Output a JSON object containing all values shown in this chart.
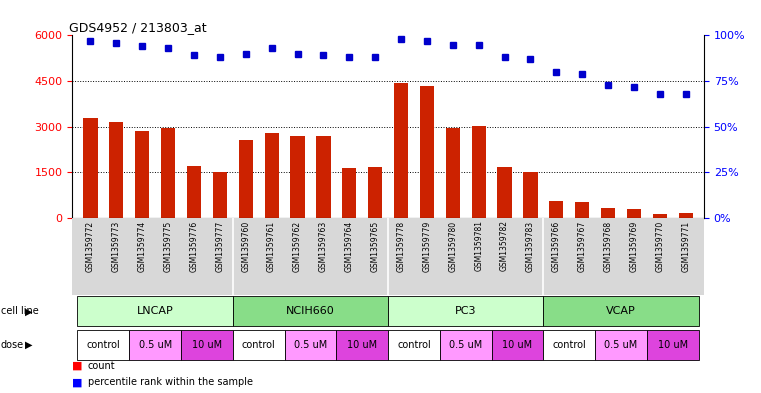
{
  "title": "GDS4952 / 213803_at",
  "samples": [
    "GSM1359772",
    "GSM1359773",
    "GSM1359774",
    "GSM1359775",
    "GSM1359776",
    "GSM1359777",
    "GSM1359760",
    "GSM1359761",
    "GSM1359762",
    "GSM1359763",
    "GSM1359764",
    "GSM1359765",
    "GSM1359778",
    "GSM1359779",
    "GSM1359780",
    "GSM1359781",
    "GSM1359782",
    "GSM1359783",
    "GSM1359766",
    "GSM1359767",
    "GSM1359768",
    "GSM1359769",
    "GSM1359770",
    "GSM1359771"
  ],
  "counts": [
    3300,
    3150,
    2850,
    2950,
    1700,
    1530,
    2550,
    2780,
    2700,
    2700,
    1650,
    1680,
    4430,
    4350,
    2950,
    3020,
    1680,
    1520,
    550,
    530,
    340,
    290,
    150,
    160
  ],
  "percentiles": [
    97,
    96,
    94,
    93,
    89,
    88,
    90,
    93,
    90,
    89,
    88,
    88,
    98,
    97,
    95,
    95,
    88,
    87,
    80,
    79,
    73,
    72,
    68,
    68
  ],
  "cell_lines": [
    {
      "name": "LNCAP",
      "start": 0,
      "end": 6,
      "color_light": "#ccffcc",
      "color_dark": "#88ee88"
    },
    {
      "name": "NCIH660",
      "start": 6,
      "end": 12,
      "color_light": "#88ee88",
      "color_dark": "#44cc44"
    },
    {
      "name": "PC3",
      "start": 12,
      "end": 18,
      "color_light": "#ccffcc",
      "color_dark": "#88ee88"
    },
    {
      "name": "VCAP",
      "start": 18,
      "end": 24,
      "color_light": "#88ee88",
      "color_dark": "#44cc44"
    }
  ],
  "doses": [
    {
      "name": "control",
      "start": 0,
      "end": 2,
      "color": "#ffffff"
    },
    {
      "name": "0.5 uM",
      "start": 2,
      "end": 4,
      "color": "#ff99ff"
    },
    {
      "name": "10 uM",
      "start": 4,
      "end": 6,
      "color": "#dd44dd"
    },
    {
      "name": "control",
      "start": 6,
      "end": 8,
      "color": "#ffffff"
    },
    {
      "name": "0.5 uM",
      "start": 8,
      "end": 10,
      "color": "#ff99ff"
    },
    {
      "name": "10 uM",
      "start": 10,
      "end": 12,
      "color": "#dd44dd"
    },
    {
      "name": "control",
      "start": 12,
      "end": 14,
      "color": "#ffffff"
    },
    {
      "name": "0.5 uM",
      "start": 14,
      "end": 16,
      "color": "#ff99ff"
    },
    {
      "name": "10 uM",
      "start": 16,
      "end": 18,
      "color": "#dd44dd"
    },
    {
      "name": "control",
      "start": 18,
      "end": 20,
      "color": "#ffffff"
    },
    {
      "name": "0.5 uM",
      "start": 20,
      "end": 22,
      "color": "#ff99ff"
    },
    {
      "name": "10 uM",
      "start": 22,
      "end": 24,
      "color": "#dd44dd"
    }
  ],
  "bar_color": "#cc2200",
  "dot_color": "#0000cc",
  "ylim_left": [
    0,
    6000
  ],
  "ylim_right": [
    0,
    100
  ],
  "yticks_left": [
    0,
    1500,
    3000,
    4500,
    6000
  ],
  "yticks_right": [
    0,
    25,
    50,
    75,
    100
  ],
  "ytick_labels_right": [
    "0%",
    "25%",
    "50%",
    "75%",
    "100%"
  ],
  "hgrid_vals": [
    1500,
    3000,
    4500
  ]
}
